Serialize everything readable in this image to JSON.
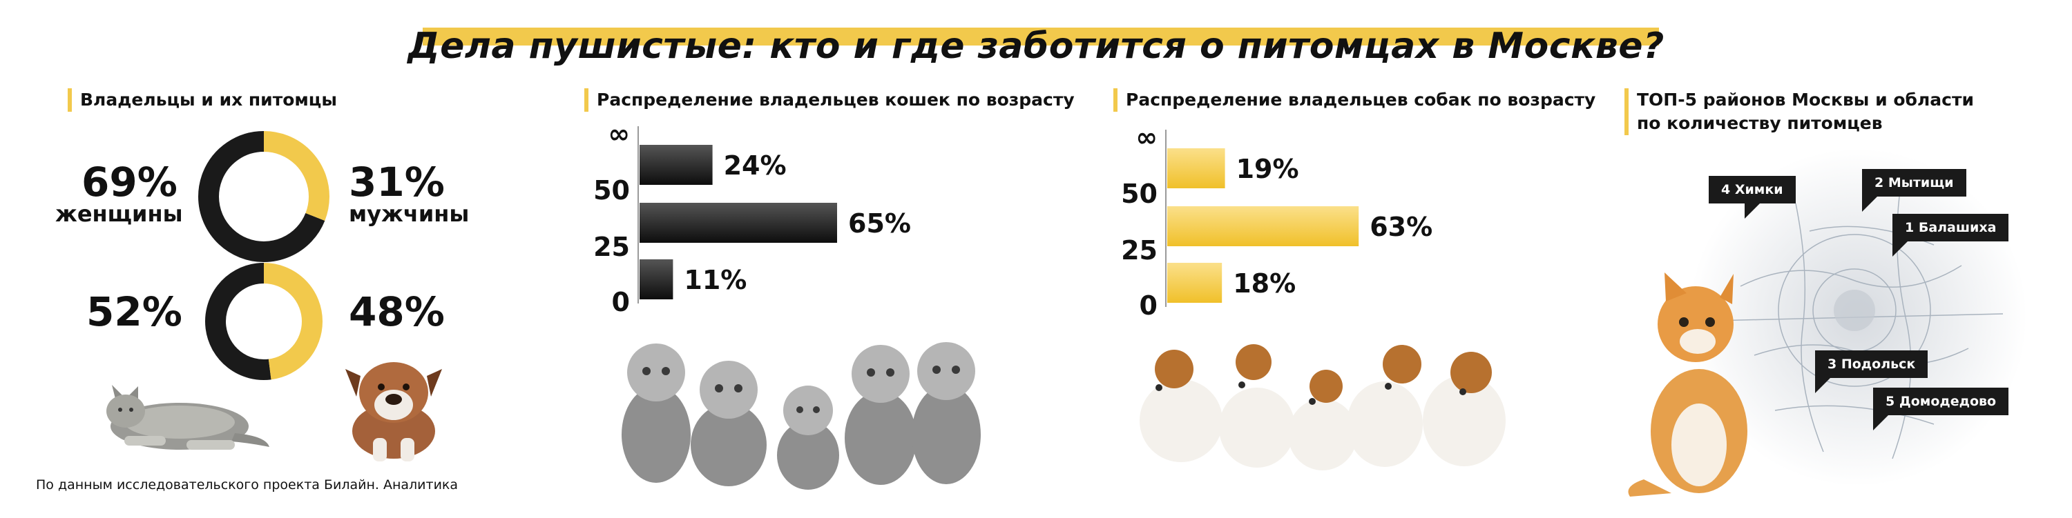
{
  "title": "Дела пушистые: кто и где заботится о питомцах в Москве?",
  "colors": {
    "accent": "#f2c94c",
    "dark": "#1a1a1a",
    "gray": "#3a3a3a"
  },
  "owners": {
    "heading": "Владельцы и их питомцы",
    "gender": {
      "women_pct": "69%",
      "women_label": "женщины",
      "men_pct": "31%",
      "men_label": "мужчины",
      "women_value": 69,
      "men_value": 31
    },
    "pets": {
      "cats_pct": "52%",
      "dogs_pct": "48%",
      "cats_value": 52,
      "dogs_value": 48
    }
  },
  "source": "По данным исследовательского проекта Билайн. Аналитика",
  "chart_data": [
    {
      "type": "pie",
      "labels": [
        "женщины",
        "мужчины"
      ],
      "values": [
        69,
        31
      ],
      "colors": [
        "#1a1a1a",
        "#f2c94c"
      ]
    },
    {
      "type": "pie",
      "values": [
        52,
        48
      ],
      "colors": [
        "#1a1a1a",
        "#f2c94c"
      ]
    },
    {
      "type": "bar",
      "title": "Распределение владельцев кошек по возрасту",
      "orientation": "horizontal",
      "y_ticks": [
        "∞",
        "50",
        "25",
        "0"
      ],
      "categories": [
        "50–∞",
        "25–50",
        "0–25"
      ],
      "values": [
        24,
        65,
        11
      ],
      "labels": [
        "24%",
        "65%",
        "11%"
      ],
      "color": "#1a1a1a"
    },
    {
      "type": "bar",
      "title": "Распределение владельцев собак по возрасту",
      "orientation": "horizontal",
      "y_ticks": [
        "∞",
        "50",
        "25",
        "0"
      ],
      "categories": [
        "50–∞",
        "25–50",
        "0–25"
      ],
      "values": [
        19,
        63,
        18
      ],
      "labels": [
        "19%",
        "63%",
        "18%"
      ],
      "color": "#f2c94c"
    }
  ],
  "top5": {
    "heading_line1": "ТОП-5 районов Москвы и области",
    "heading_line2": "по количеству питомцев",
    "items": [
      "4 Химки",
      "2 Мытищи",
      "1 Балашиха",
      "3 Подольск",
      "5 Домодедово"
    ]
  }
}
